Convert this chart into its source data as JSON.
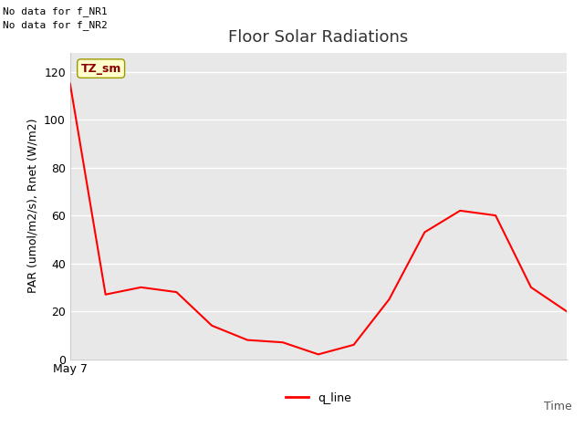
{
  "title": "Floor Solar Radiations",
  "no_data_text": [
    "No data for f_NR1",
    "No data for f_NR2"
  ],
  "label_box_text": "TZ_sm",
  "xlabel": "Time",
  "ylabel": "PAR (umol/m2/s), Rnet (W/m2)",
  "ylim": [
    0,
    128
  ],
  "yticks": [
    0,
    20,
    40,
    60,
    80,
    100,
    120
  ],
  "x_start_label": "May 7",
  "line_color": "#ff0000",
  "line_label": "q_line",
  "background_color": "#e8e8e8",
  "x_values": [
    0,
    1,
    2,
    3,
    4,
    5,
    6,
    7,
    8,
    9,
    10,
    11,
    12,
    13,
    14
  ],
  "y_values": [
    115,
    27,
    30,
    28,
    14,
    8,
    7,
    2,
    6,
    25,
    53,
    62,
    60,
    30,
    20
  ],
  "title_fontsize": 13,
  "label_fontsize": 9,
  "tick_fontsize": 9,
  "no_data_fontsize": 8,
  "legend_fontsize": 9
}
